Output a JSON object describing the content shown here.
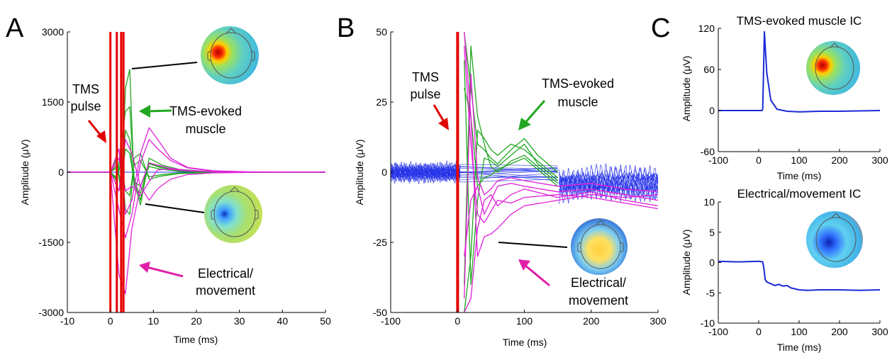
{
  "colors": {
    "tms_pulse": "#e60000",
    "muscle": "#22a822",
    "electrical": "#e020d8",
    "baseline": "#2030e8",
    "ic": "#1a2ad8",
    "annotation_line": "#000000"
  },
  "chart_data": [
    {
      "panel": "A",
      "type": "line",
      "xlabel": "Time (ms)",
      "ylabel": "Amplitude (μV)",
      "xlim": [
        -10,
        50
      ],
      "ylim": [
        -3000,
        3000
      ],
      "xticks": [
        -10,
        0,
        10,
        20,
        30,
        40,
        50
      ],
      "yticks": [
        -3000,
        -1500,
        0,
        1500,
        3000
      ],
      "annotations": {
        "tms": [
          "TMS",
          "pulse"
        ],
        "muscle": [
          "TMS-evoked",
          "muscle"
        ],
        "electrical": [
          "Electrical/",
          "movement"
        ]
      },
      "series": [
        {
          "group": "muscle",
          "x": [
            -10,
            0,
            1.5,
            2.5,
            3.5,
            4.5,
            5.5,
            7,
            9,
            12,
            16,
            22,
            30,
            50
          ],
          "y": [
            0,
            0,
            300,
            -500,
            1800,
            2200,
            -200,
            -700,
            300,
            150,
            60,
            20,
            5,
            0
          ]
        },
        {
          "group": "muscle",
          "x": [
            -10,
            0,
            1.5,
            2.5,
            3.5,
            4.5,
            5.5,
            7,
            9,
            12,
            16,
            22,
            30,
            50
          ],
          "y": [
            0,
            0,
            -200,
            600,
            1300,
            1400,
            -100,
            -600,
            200,
            100,
            40,
            15,
            5,
            0
          ]
        },
        {
          "group": "muscle",
          "x": [
            -10,
            0,
            1.5,
            2.5,
            3.5,
            4.5,
            5.5,
            7,
            9,
            12,
            16,
            22,
            30,
            50
          ],
          "y": [
            0,
            0,
            150,
            -300,
            900,
            700,
            -300,
            -450,
            180,
            90,
            30,
            10,
            3,
            0
          ]
        },
        {
          "group": "muscle",
          "x": [
            -10,
            0,
            1.5,
            2.5,
            3.5,
            4.5,
            5.5,
            7,
            9,
            12,
            16,
            22,
            30,
            50
          ],
          "y": [
            0,
            0,
            -150,
            250,
            -800,
            -900,
            300,
            400,
            -150,
            -80,
            -30,
            -10,
            -3,
            0
          ]
        },
        {
          "group": "muscle",
          "x": [
            -10,
            0,
            1.5,
            2.5,
            3.5,
            4.5,
            5.5,
            7,
            9,
            12,
            16,
            22,
            30,
            50
          ],
          "y": [
            0,
            0,
            100,
            -200,
            500,
            400,
            -200,
            -300,
            120,
            60,
            20,
            8,
            2,
            0
          ]
        },
        {
          "group": "muscle",
          "x": [
            -10,
            0,
            1.5,
            2.5,
            3.5,
            4.5,
            5.5,
            7,
            9,
            12,
            16,
            22,
            30,
            50
          ],
          "y": [
            0,
            0,
            -120,
            200,
            -400,
            -500,
            150,
            250,
            -100,
            -50,
            -20,
            -6,
            -2,
            0
          ]
        },
        {
          "group": "electrical",
          "x": [
            -10,
            0,
            2,
            3.5,
            5,
            7,
            9,
            11,
            14,
            18,
            24,
            32,
            50
          ],
          "y": [
            0,
            0,
            -2200,
            -2600,
            -1200,
            -300,
            200,
            150,
            80,
            40,
            15,
            5,
            0
          ]
        },
        {
          "group": "electrical",
          "x": [
            -10,
            0,
            2,
            3.5,
            5,
            7,
            9,
            11,
            14,
            18,
            24,
            32,
            50
          ],
          "y": [
            0,
            0,
            500,
            -900,
            -600,
            400,
            950,
            700,
            300,
            100,
            30,
            8,
            0
          ]
        },
        {
          "group": "electrical",
          "x": [
            -10,
            0,
            2,
            3.5,
            5,
            7,
            9,
            11,
            14,
            18,
            24,
            32,
            50
          ],
          "y": [
            0,
            0,
            -800,
            -1400,
            -900,
            200,
            700,
            500,
            250,
            90,
            25,
            6,
            0
          ]
        },
        {
          "group": "electrical",
          "x": [
            -10,
            0,
            2,
            3.5,
            5,
            7,
            9,
            11,
            14,
            18,
            24,
            32,
            50
          ],
          "y": [
            0,
            0,
            300,
            -400,
            -300,
            -500,
            -200,
            50,
            60,
            30,
            10,
            3,
            0
          ]
        },
        {
          "group": "electrical",
          "x": [
            -10,
            0,
            2,
            3.5,
            5,
            7,
            9,
            11,
            14,
            18,
            24,
            32,
            50
          ],
          "y": [
            0,
            0,
            -400,
            700,
            400,
            -300,
            -600,
            -350,
            -150,
            -50,
            -15,
            -4,
            0
          ]
        }
      ]
    },
    {
      "panel": "B",
      "type": "line",
      "xlabel": "Time (ms)",
      "ylabel": "Amplitude (μV)",
      "xlim": [
        -100,
        300
      ],
      "ylim": [
        -50,
        50
      ],
      "xticks": [
        -100,
        0,
        100,
        200,
        300
      ],
      "yticks": [
        -50,
        -25,
        0,
        25,
        50
      ],
      "annotations": {
        "tms": [
          "TMS",
          "pulse"
        ],
        "muscle": [
          "TMS-evoked",
          "muscle"
        ],
        "electrical": [
          "Electrical/",
          "movement"
        ]
      },
      "series": [
        {
          "group": "muscle",
          "x": [
            10,
            20,
            30,
            40,
            50,
            60,
            80,
            100,
            120,
            150
          ],
          "y": [
            50,
            30,
            10,
            8,
            5,
            3,
            8,
            12,
            6,
            0
          ]
        },
        {
          "group": "muscle",
          "x": [
            10,
            20,
            30,
            40,
            50,
            60,
            80,
            100,
            120,
            150
          ],
          "y": [
            -50,
            -30,
            15,
            12,
            8,
            6,
            10,
            8,
            4,
            -2
          ]
        },
        {
          "group": "muscle",
          "x": [
            10,
            20,
            30,
            40,
            50,
            60,
            80,
            100,
            120,
            150
          ],
          "y": [
            40,
            -40,
            -10,
            5,
            4,
            2,
            6,
            10,
            3,
            -3
          ]
        },
        {
          "group": "muscle",
          "x": [
            10,
            20,
            30,
            40,
            50,
            60,
            80,
            100,
            120,
            150
          ],
          "y": [
            -40,
            45,
            20,
            10,
            2,
            0,
            4,
            6,
            2,
            -4
          ]
        },
        {
          "group": "muscle",
          "x": [
            10,
            20,
            30,
            40,
            50,
            60,
            80,
            100,
            120,
            150
          ],
          "y": [
            30,
            20,
            -5,
            -2,
            -1,
            1,
            3,
            5,
            1,
            -5
          ]
        },
        {
          "group": "electrical",
          "x": [
            10,
            20,
            30,
            40,
            50,
            60,
            80,
            100,
            150,
            200,
            250,
            300
          ],
          "y": [
            -50,
            -45,
            -20,
            -10,
            -8,
            -12,
            -8,
            -6,
            -9,
            -7,
            -10,
            -12
          ]
        },
        {
          "group": "electrical",
          "x": [
            10,
            20,
            30,
            40,
            50,
            60,
            80,
            100,
            150,
            200,
            250,
            300
          ],
          "y": [
            50,
            20,
            -30,
            -23,
            -22,
            -20,
            -15,
            -12,
            -10,
            -8,
            -9,
            -8
          ]
        },
        {
          "group": "electrical",
          "x": [
            10,
            20,
            30,
            40,
            50,
            60,
            80,
            100,
            150,
            200,
            250,
            300
          ],
          "y": [
            -30,
            -10,
            -5,
            -15,
            -10,
            -5,
            -4,
            -5,
            -7,
            -6,
            -8,
            -10
          ]
        },
        {
          "group": "electrical",
          "x": [
            10,
            20,
            30,
            40,
            50,
            60,
            80,
            100,
            150,
            200,
            250,
            300
          ],
          "y": [
            45,
            10,
            -15,
            -18,
            -14,
            -10,
            -11,
            -9,
            -8,
            -9,
            -11,
            -13
          ]
        },
        {
          "group": "electrical",
          "x": [
            10,
            20,
            30,
            40,
            50,
            60,
            80,
            100,
            150,
            200,
            250,
            300
          ],
          "y": [
            -45,
            35,
            -2,
            -8,
            -6,
            -3,
            -2,
            -3,
            -5,
            -4,
            -6,
            -7
          ]
        }
      ]
    },
    {
      "panel": "C-top",
      "type": "line",
      "title": "TMS-evoked muscle IC",
      "xlabel": "Time (ms)",
      "ylabel": "Amplitude (μV)",
      "xlim": [
        -100,
        300
      ],
      "ylim": [
        -60,
        120
      ],
      "xticks": [
        -100,
        0,
        100,
        200,
        300
      ],
      "yticks": [
        -60,
        0,
        60,
        120
      ],
      "series": [
        {
          "x": [
            -100,
            0,
            8,
            10,
            14,
            20,
            30,
            45,
            70,
            100,
            150,
            200,
            300
          ],
          "y": [
            0,
            0,
            0,
            2,
            115,
            55,
            15,
            2,
            -1,
            -2,
            -1,
            -1,
            0
          ]
        }
      ]
    },
    {
      "panel": "C-bottom",
      "type": "line",
      "title": "Electrical/movement IC",
      "xlabel": "Time (ms)",
      "ylabel": "Amplitude (μV)",
      "xlim": [
        -100,
        300
      ],
      "ylim": [
        -10,
        10
      ],
      "xticks": [
        -100,
        0,
        100,
        200,
        300
      ],
      "yticks": [
        -10,
        -5,
        0,
        5,
        10
      ],
      "series": [
        {
          "x": [
            -100,
            -50,
            0,
            10,
            13,
            16,
            20,
            30,
            40,
            50,
            60,
            70,
            80,
            100,
            120,
            150,
            200,
            250,
            300
          ],
          "y": [
            0.2,
            0.1,
            0.2,
            0.1,
            -1.0,
            -2.8,
            -3.2,
            -3.5,
            -3.8,
            -3.6,
            -3.9,
            -3.8,
            -4.2,
            -4.5,
            -4.6,
            -4.5,
            -4.5,
            -4.6,
            -4.5
          ]
        }
      ]
    }
  ]
}
